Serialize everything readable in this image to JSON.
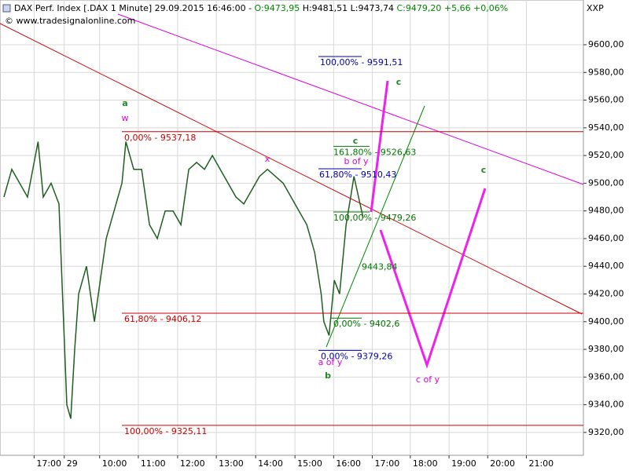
{
  "header": {
    "parts": [
      "DAX Perf. Index [.DAX  1 Minute] 29.09.2015 16:46:00 - ",
      "O:9473,95",
      " H:9481,51 L:9473,74 ",
      "C:9479,20 +5,66 +0,06%"
    ],
    "copyright": "© www.tradesignalonline.com",
    "corner": "XXP"
  },
  "chart_data": {
    "type": "line",
    "x": [
      6,
      18,
      30,
      42,
      58,
      66,
      78,
      90,
      102,
      108,
      114,
      120,
      132,
      144,
      150,
      162,
      174,
      186,
      192,
      204,
      216,
      228,
      240,
      252,
      264,
      276,
      288,
      300,
      312,
      324,
      336,
      348,
      360,
      372,
      384,
      396,
      408,
      420,
      432,
      444,
      456,
      468,
      480,
      490,
      494,
      502,
      510,
      518,
      528,
      535,
      540,
      547,
      554
    ],
    "series": [
      {
        "name": "DAX Perf. Index",
        "color": "#1f5f1f",
        "values": [
          9490,
          9510,
          9500,
          9490,
          9530,
          9490,
          9500,
          9485,
          9340,
          9330,
          9380,
          9420,
          9440,
          9400,
          9420,
          9460,
          9480,
          9500,
          9530,
          9510,
          9510,
          9470,
          9460,
          9480,
          9480,
          9470,
          9510,
          9515,
          9510,
          9520,
          9510,
          9500,
          9490,
          9485,
          9495,
          9505,
          9510,
          9505,
          9500,
          9490,
          9480,
          9470,
          9450,
          9420,
          9400,
          9390,
          9430,
          9420,
          9470,
          9490,
          9505,
          9490,
          9475
        ]
      }
    ],
    "xlim": [
      0,
      890
    ],
    "ylim": [
      9303.5,
      9632.3
    ],
    "xticks": [
      {
        "value": 52,
        "label": "17:00"
      },
      {
        "value": 98,
        "label": "29"
      },
      {
        "value": 152,
        "label": "10:00"
      },
      {
        "value": 211,
        "label": "11:00"
      },
      {
        "value": 271,
        "label": "12:00"
      },
      {
        "value": 330,
        "label": "13:00"
      },
      {
        "value": 390,
        "label": "14:00"
      },
      {
        "value": 450,
        "label": "15:00"
      },
      {
        "value": 509,
        "label": "16:00"
      },
      {
        "value": 568,
        "label": "17:00"
      },
      {
        "value": 626,
        "label": "18:00"
      },
      {
        "value": 685,
        "label": "19:00"
      },
      {
        "value": 744,
        "label": "20:00"
      },
      {
        "value": 803,
        "label": "21:00"
      }
    ],
    "yticks": [
      {
        "value": 9320,
        "label": "9320,00"
      },
      {
        "value": 9340,
        "label": "9340,00"
      },
      {
        "value": 9360,
        "label": "9360,00"
      },
      {
        "value": 9380,
        "label": "9380,00"
      },
      {
        "value": 9400,
        "label": "9400,00"
      },
      {
        "value": 9420,
        "label": "9420,00"
      },
      {
        "value": 9440,
        "label": "9440,00"
      },
      {
        "value": 9460,
        "label": "9460,00"
      },
      {
        "value": 9480,
        "label": "9480,00"
      },
      {
        "value": 9500,
        "label": "9500,00"
      },
      {
        "value": 9520,
        "label": "9520,00"
      },
      {
        "value": 9540,
        "label": "9540,00"
      },
      {
        "value": 9560,
        "label": "9560,00"
      },
      {
        "value": 9580,
        "label": "9580,00"
      },
      {
        "value": 9600,
        "label": "9600,00"
      }
    ],
    "grid": true,
    "levels": [
      {
        "label": "0,00% - 9537,18",
        "value": 9537.18,
        "color": "#cc0000"
      },
      {
        "label": "61,80% - 9406,12",
        "value": 9406.12,
        "color": "#cc0000"
      },
      {
        "label": "100,00% - 9325,11",
        "value": 9325.11,
        "color": "#cc0000"
      },
      {
        "label": "100,00% - 9591,51",
        "value": 9591.51,
        "color": "#0000aa"
      },
      {
        "label": "61,80% - 9510,43",
        "value": 9510.43,
        "color": "#0000aa"
      },
      {
        "label": "0,00% - 9379,26",
        "value": 9379.26,
        "color": "#0000aa"
      },
      {
        "label": "161,80% - 9526,63",
        "value": 9526.63,
        "color": "#007700"
      },
      {
        "label": "100,00% - 9479,26",
        "value": 9479.26,
        "color": "#007700"
      },
      {
        "label": "0,00% - 9402,6",
        "value": 9402.6,
        "color": "#007700"
      },
      {
        "label": "9443,84",
        "value": 9443.84,
        "color": "#007700"
      }
    ],
    "annotations": [
      "a",
      "w",
      "x",
      "b of y",
      "c",
      "c",
      "a of y",
      "b",
      "c of y",
      "c"
    ]
  }
}
